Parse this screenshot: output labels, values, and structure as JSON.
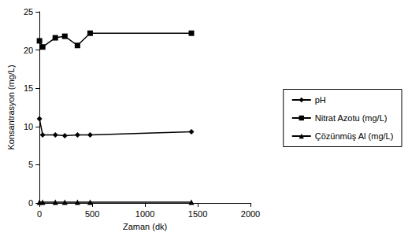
{
  "chart_data": {
    "type": "line",
    "x_label": "Zaman (dk)",
    "y_label": "Konsantrasyon (mg/L)",
    "x": [
      0,
      30,
      150,
      240,
      360,
      480,
      1440
    ],
    "series": [
      {
        "name": "pH",
        "color": "#000000",
        "marker": "diamond",
        "values": [
          11.0,
          8.9,
          8.9,
          8.8,
          8.9,
          8.9,
          9.3
        ]
      },
      {
        "name": "Nitrat Azotu (mg/L)",
        "color": "#000000",
        "marker": "square",
        "values": [
          21.2,
          20.4,
          21.6,
          21.8,
          20.6,
          22.2,
          22.2
        ]
      },
      {
        "name": "Çözünmüş Al (mg/L)",
        "color": "#000000",
        "marker": "triangle",
        "values": [
          0.1,
          0.1,
          0.1,
          0.1,
          0.1,
          0.1,
          0.1
        ]
      }
    ],
    "xlim": [
      0,
      2000
    ],
    "xticks": [
      0,
      500,
      1000,
      1500,
      2000
    ],
    "ylim": [
      0,
      25
    ],
    "yticks": [
      0,
      5,
      10,
      15,
      20,
      25
    ],
    "grid": false,
    "legend": "right"
  }
}
